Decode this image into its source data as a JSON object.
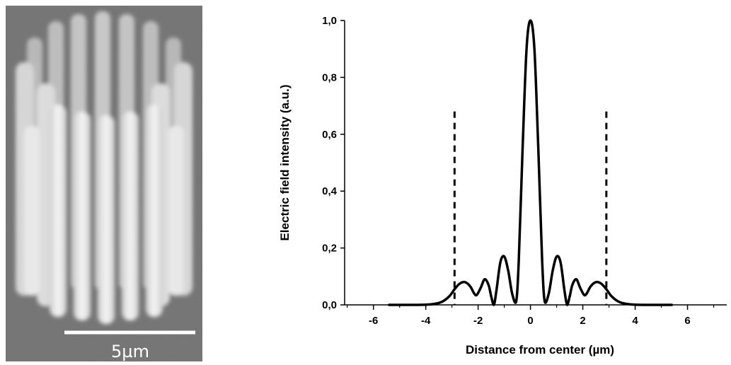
{
  "sem_image": {
    "scale_bar_label": "5µm"
  },
  "chart_data": {
    "type": "line",
    "title": "",
    "xlabel": "Distance from center (µm)",
    "ylabel": "Electric field intensity (a.u.)",
    "xlim": [
      -7.1,
      7.5
    ],
    "ylim": [
      0,
      1.0
    ],
    "xticks": [
      -6,
      -4,
      -2,
      0,
      2,
      4,
      6
    ],
    "xtick_labels": [
      "-6",
      "-4",
      "-2",
      "0",
      "2",
      "4",
      "6"
    ],
    "yticks": [
      0,
      0.2,
      0.4,
      0.6,
      0.8,
      1.0
    ],
    "ytick_labels": [
      "0,0",
      "0,2",
      "0,4",
      "0,6",
      "0,8",
      "1,0"
    ],
    "grid": false,
    "series": [
      {
        "style": "solid",
        "x": [
          -5.4,
          -4.5,
          -3.8,
          -3.4,
          -3.1,
          -2.9,
          -2.7,
          -2.5,
          -2.3,
          -2.15,
          -2.05,
          -1.9,
          -1.75,
          -1.6,
          -1.5,
          -1.4,
          -1.3,
          -1.15,
          -1.0,
          -0.85,
          -0.7,
          -0.55,
          -0.45,
          -0.3,
          -0.15,
          0,
          0.15,
          0.3,
          0.45,
          0.55,
          0.7,
          0.85,
          1.0,
          1.15,
          1.3,
          1.4,
          1.5,
          1.6,
          1.75,
          1.9,
          2.05,
          2.15,
          2.3,
          2.5,
          2.7,
          2.9,
          3.1,
          3.4,
          3.8,
          4.5,
          5.4
        ],
        "y": [
          0.0,
          0.0,
          0.002,
          0.01,
          0.03,
          0.055,
          0.075,
          0.08,
          0.065,
          0.04,
          0.035,
          0.06,
          0.09,
          0.07,
          0.03,
          0.0,
          0.05,
          0.15,
          0.17,
          0.12,
          0.04,
          0.01,
          0.15,
          0.55,
          0.9,
          1.0,
          0.9,
          0.55,
          0.15,
          0.01,
          0.04,
          0.12,
          0.17,
          0.15,
          0.05,
          0.0,
          0.03,
          0.07,
          0.09,
          0.06,
          0.035,
          0.04,
          0.065,
          0.08,
          0.075,
          0.055,
          0.03,
          0.01,
          0.002,
          0.0,
          0.0
        ]
      }
    ],
    "reference_lines": [
      {
        "orientation": "vertical",
        "style": "dashed",
        "x": -2.9,
        "y_range": [
          0,
          0.68
        ]
      },
      {
        "orientation": "vertical",
        "style": "dashed",
        "x": 2.9,
        "y_range": [
          0,
          0.68
        ]
      }
    ]
  }
}
